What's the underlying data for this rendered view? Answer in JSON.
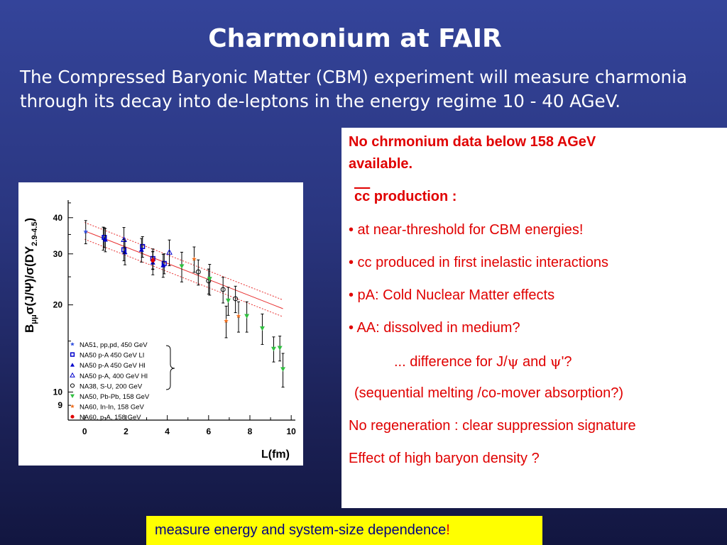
{
  "slide": {
    "title": "Charmonium at FAIR",
    "intro": "The Compressed Baryonic Matter (CBM) experiment will measure charmonia through its decay into de-leptons in the energy regime 10 - 40 AGeV."
  },
  "plot": {
    "ytitle_main": "B",
    "ytitle_sub": "μμ",
    "ytitle_rest": "σ(J/Ψ)/σ(DY",
    "ytitle_range": "2.9-4.5",
    "ytitle_close": ")",
    "xtitle": "L(fm)",
    "xticks": [
      "0",
      "2",
      "4",
      "6",
      "8",
      "10"
    ],
    "yticks": [
      "10",
      "20",
      "30",
      "40"
    ],
    "ytick9": "9",
    "legend": [
      {
        "label": "NA51, pp,pd, 450 GeV",
        "marker": "star",
        "color": "#3050e0"
      },
      {
        "label": "NA50 p-A 450 GeV LI",
        "marker": "square-open",
        "color": "#0000cc"
      },
      {
        "label": "NA50 p-A 450 GeV HI",
        "marker": "triangle-filled",
        "color": "#0000cc"
      },
      {
        "label": "NA50 p-A, 400 GeV HI",
        "marker": "triangle-open",
        "color": "#0000cc"
      },
      {
        "label": "NA38, S-U, 200 GeV",
        "marker": "circle-open",
        "color": "#000000"
      },
      {
        "label": "NA50, Pb-Pb, 158 GeV",
        "marker": "triangle-down",
        "color": "#30c040"
      },
      {
        "label": "NA60, In-In, 158 GeV",
        "marker": "star",
        "color": "#f07020"
      },
      {
        "label": "NA60, p-A, 158 GeV",
        "marker": "circle-filled",
        "color": "#e00000"
      }
    ]
  },
  "chart_data": {
    "type": "scatter",
    "xlabel": "L(fm)",
    "ylabel": "Bμμ σ(J/Ψ)/σ(DY 2.9-4.5)",
    "xlim": [
      -0.8,
      10.2
    ],
    "ylim": [
      8,
      46
    ],
    "log_y": true,
    "series": [
      {
        "name": "NA51, pp,pd, 450 GeV",
        "x": [
          0.05,
          0.9
        ],
        "y": [
          35.8,
          34.0
        ],
        "err": [
          3.3,
          3.1
        ]
      },
      {
        "name": "NA50 p-A 450 GeV LI",
        "x": [
          0.95,
          1.9,
          2.8,
          3.3,
          3.85
        ],
        "y": [
          34.2,
          31.0,
          31.8,
          28.9,
          27.8
        ],
        "err": [
          2.7,
          2.6,
          2.6,
          2.3,
          2.2
        ]
      },
      {
        "name": "NA50 p-A 450 GeV HI",
        "x": [
          1.0,
          1.95,
          2.75,
          3.3,
          3.8
        ],
        "y": [
          33.6,
          30.4,
          31.0,
          28.0,
          27.4
        ],
        "err": [
          3.1,
          2.9,
          2.9,
          2.6,
          2.5
        ]
      },
      {
        "name": "NA50 p-A, 400 GeV HI",
        "x": [
          1.9,
          4.1
        ],
        "y": [
          33.6,
          30.4
        ],
        "err": [
          3.4,
          3.1
        ]
      },
      {
        "name": "NA38, S-U, 200 GeV",
        "x": [
          5.5,
          6.0,
          6.7,
          7.3
        ],
        "y": [
          26.0,
          24.2,
          22.6,
          21.0
        ],
        "err": [
          2.6,
          2.4,
          2.3,
          2.2
        ]
      },
      {
        "name": "NA50, Pb-Pb, 158 GeV",
        "x": [
          4.7,
          6.05,
          6.95,
          7.85,
          8.6,
          9.15,
          9.45,
          9.6
        ],
        "y": [
          27.2,
          24.6,
          20.7,
          18.3,
          16.6,
          14.1,
          14.2,
          12.0
        ],
        "err": [
          3.2,
          3.0,
          2.3,
          2.2,
          2.0,
          1.4,
          1.4,
          1.6
        ]
      },
      {
        "name": "NA60, In-In, 158 GeV",
        "x": [
          5.3,
          6.85,
          7.45
        ],
        "y": [
          28.8,
          17.6,
          18.3
        ],
        "err": [
          2.9,
          2.2,
          2.2
        ]
      },
      {
        "name": "NA60, p-A, 158 GeV",
        "x": [
          3.3
        ],
        "y": [
          28.5
        ],
        "err": [
          2.0
        ]
      }
    ],
    "fit": {
      "x": [
        0,
        9.6
      ],
      "y": [
        36.0,
        19.4
      ]
    },
    "band_upper": {
      "x": [
        0,
        9.6
      ],
      "y": [
        38.5,
        20.8
      ]
    },
    "band_lower": {
      "x": [
        0,
        9.6
      ],
      "y": [
        33.7,
        18.2
      ]
    }
  },
  "box": {
    "line1": "No chrmonium data below 158 AGeV",
    "line2": "available.",
    "cc_heading_cc": "cc",
    "cc_heading_rest": " production :",
    "bullet1": "• at near-threshold for CBM energies!",
    "bullet2": "• cc produced in first inelastic interactions",
    "bullet3": "• pA: Cold Nuclear Matter effects",
    "bullet4": "• AA: dissolved in medium?",
    "difference_pre": "... difference for J/",
    "psi1": "ψ",
    "difference_mid": " and ",
    "psi2": "ψ",
    "difference_post": "'?",
    "sequential": "(sequential melting /co-mover absorption?)",
    "noregen": "No regeneration : clear suppression signature",
    "effect": "Effect of high baryon density ?"
  },
  "footer": {
    "text": "measure energy and system-size dependence",
    "bang": "!"
  },
  "colors": {
    "background_top": "#34449a",
    "background_bottom": "#121640",
    "box_text": "#e00000",
    "footer_bg": "#ffff00",
    "footer_text": "#000080"
  }
}
